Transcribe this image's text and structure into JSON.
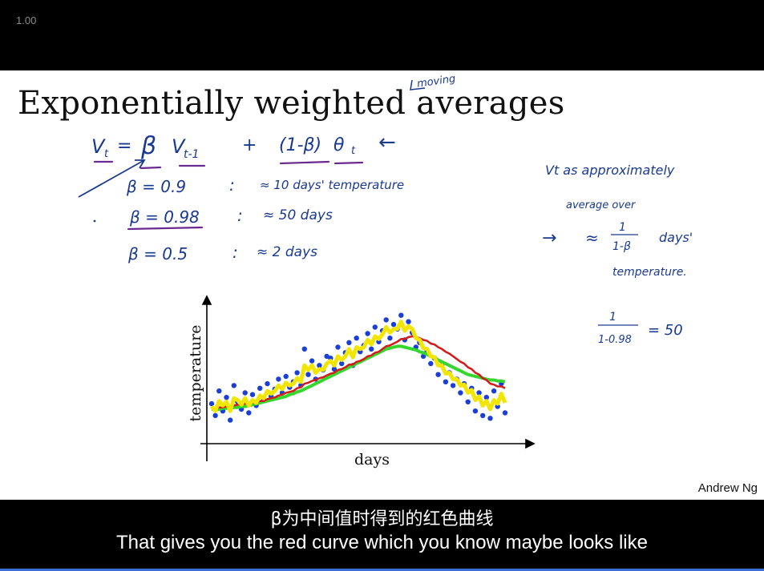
{
  "player": {
    "speed_label": "1.00",
    "progress": 1.0
  },
  "slide": {
    "title": "Exponentially weighted averages",
    "title_note": "moving",
    "formula": {
      "v_t": "V",
      "v_t_sub": "t",
      "eq": "=",
      "beta": "β",
      "v_prev": "V",
      "v_prev_sub": "t-1",
      "plus": "+",
      "one_minus_beta": "(1-β)",
      "theta": "θ",
      "theta_sub": "t",
      "arrow": "←"
    },
    "beta_examples": [
      {
        "beta": "β = 0.9",
        "sep": ":",
        "approx": "≈ 10 days' temperature"
      },
      {
        "beta": "β = 0.98",
        "sep": ":",
        "approx": "≈ 50 days"
      },
      {
        "beta": "β = 0.5",
        "sep": ":",
        "approx": "≈ 2 days"
      }
    ],
    "side_notes": {
      "line1": "Vt as approximately",
      "line2": "average over",
      "arrow": "→",
      "approx": "≈",
      "frac_num": "1",
      "frac_den": "1-β",
      "days": "days'",
      "line4": "temperature.",
      "calc_num": "1",
      "calc_den": "1-0.98",
      "calc_eq": "= 50"
    },
    "author": "Andrew Ng"
  },
  "subtitles": {
    "cn": "β为中间值时得到的红色曲线",
    "en": "That gives you the red curve which you know maybe looks like"
  },
  "colors": {
    "ink": "#1a3a8f",
    "purple": "#6a2a8f",
    "dots": "#1a3fd6",
    "yellow": "#f2e600",
    "red": "#d41a1a",
    "green": "#35d62e"
  },
  "chart_data": {
    "type": "line",
    "xlabel": "days",
    "ylabel": "temperature",
    "x": [
      1,
      2,
      3,
      4,
      5,
      6,
      7,
      8,
      9,
      10,
      11,
      12,
      13,
      14,
      15,
      16,
      17,
      18,
      19,
      20,
      21,
      22,
      23,
      24,
      25,
      26,
      27,
      28,
      29,
      30,
      31,
      32,
      33,
      34,
      35,
      36,
      37,
      38,
      39,
      40,
      41,
      42,
      43,
      44,
      45,
      46,
      47,
      48,
      49,
      50,
      51,
      52,
      53,
      54,
      55,
      56,
      57,
      58,
      59,
      60,
      61,
      62,
      63,
      64,
      65,
      66,
      67,
      68,
      69,
      70,
      71,
      72,
      73,
      74,
      75,
      76,
      77,
      78,
      79,
      80
    ],
    "series": [
      {
        "role": "data points",
        "values": [
          28,
          15,
          42,
          20,
          35,
          10,
          48,
          30,
          22,
          40,
          18,
          38,
          26,
          45,
          32,
          50,
          36,
          44,
          55,
          40,
          58,
          46,
          52,
          62,
          48,
          88,
          60,
          75,
          55,
          70,
          65,
          80,
          78,
          66,
          90,
          72,
          84,
          95,
          70,
          100,
          85,
          92,
          105,
          88,
          112,
          96,
          108,
          120,
          100,
          115,
          110,
          125,
          98,
          118,
          106,
          90,
          95,
          80,
          86,
          72,
          78,
          60,
          70,
          52,
          62,
          48,
          55,
          40,
          50,
          30,
          45,
          20,
          40,
          15,
          35,
          12,
          42,
          25,
          50,
          18
        ]
      },
      {
        "role": "beta 0.5 (yellow)",
        "values": [
          25,
          20,
          31,
          26,
          30,
          20,
          34,
          32,
          27,
          34,
          26,
          32,
          29,
          37,
          34,
          42,
          39,
          42,
          48,
          44,
          51,
          48,
          50,
          56,
          52,
          70,
          65,
          70,
          62,
          66,
          65,
          72,
          75,
          70,
          80,
          76,
          80,
          88,
          79,
          90,
          88,
          90,
          98,
          93,
          102,
          99,
          104,
          112,
          106,
          110,
          110,
          118,
          108,
          113,
          110,
          100,
          98,
          89,
          88,
          80,
          79,
          70,
          70,
          61,
          62,
          55,
          55,
          48,
          49,
          40,
          43,
          32,
          36,
          26,
          31,
          22,
          32,
          28,
          39,
          29
        ]
      },
      {
        "role": "beta 0.9 (red)",
        "values": [
          22,
          22,
          24,
          24,
          25,
          24,
          26,
          27,
          27,
          28,
          28,
          29,
          29,
          31,
          31,
          33,
          34,
          35,
          37,
          38,
          40,
          41,
          42,
          45,
          46,
          50,
          51,
          53,
          54,
          56,
          57,
          59,
          61,
          62,
          65,
          66,
          68,
          71,
          71,
          74,
          75,
          77,
          80,
          81,
          84,
          85,
          88,
          91,
          92,
          94,
          96,
          99,
          99,
          101,
          102,
          101,
          100,
          98,
          97,
          94,
          93,
          90,
          88,
          85,
          83,
          80,
          77,
          74,
          72,
          68,
          66,
          62,
          60,
          56,
          54,
          50,
          49,
          47,
          47,
          45
        ]
      },
      {
        "role": "beta 0.98 (green)",
        "values": [
          22,
          22,
          22,
          23,
          23,
          23,
          24,
          24,
          25,
          25,
          26,
          27,
          28,
          29,
          30,
          31,
          32,
          33,
          34,
          35,
          36,
          38,
          39,
          41,
          42,
          44,
          46,
          48,
          50,
          52,
          54,
          56,
          58,
          60,
          62,
          64,
          66,
          68,
          70,
          72,
          74,
          76,
          78,
          80,
          82,
          84,
          86,
          88,
          89,
          90,
          91,
          91,
          90,
          89,
          88,
          87,
          85,
          84,
          82,
          80,
          78,
          76,
          74,
          72,
          70,
          68,
          66,
          64,
          62,
          60,
          59,
          58,
          57,
          56,
          55,
          54,
          54,
          53,
          53,
          52
        ]
      }
    ]
  }
}
